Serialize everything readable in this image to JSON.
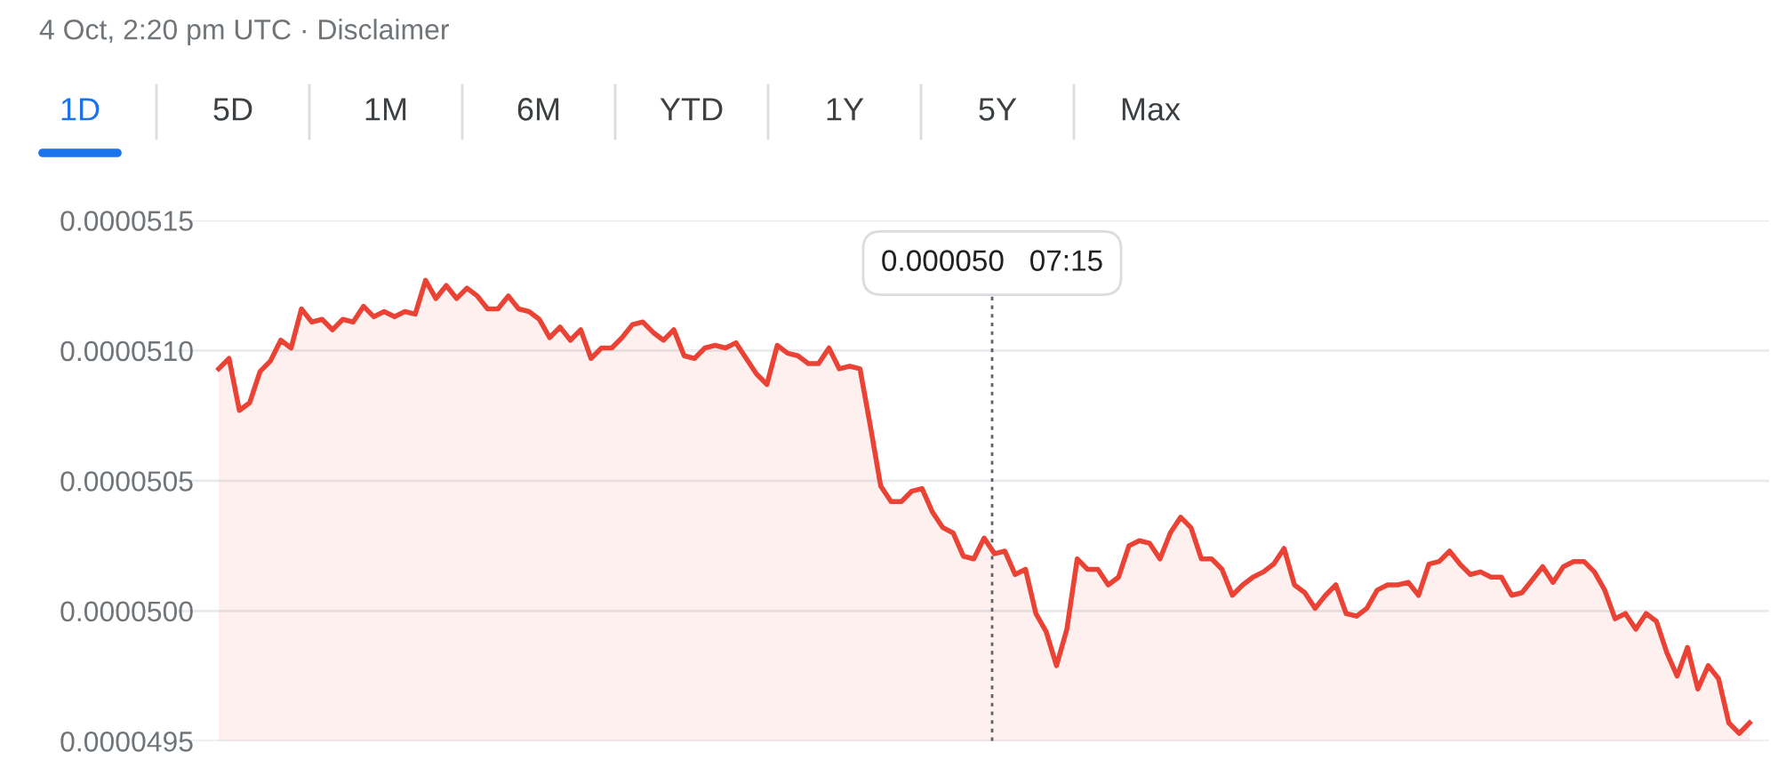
{
  "chart_data": {
    "type": "area",
    "title": "4 Oct, 2:20 pm UTC · Disclaimer",
    "annotations": [
      "1D",
      "5D",
      "1M",
      "6M",
      "YTD",
      "1Y",
      "5Y",
      "Max",
      "0.000050   07:15"
    ],
    "categories": [
      null,
      null,
      null,
      null,
      null,
      null,
      null,
      null,
      null,
      null,
      null,
      null,
      null,
      null,
      null,
      null,
      null,
      null,
      null,
      null,
      null,
      null,
      null,
      null,
      null,
      null,
      null,
      null,
      null,
      null,
      null,
      null,
      null,
      null,
      null,
      null,
      null,
      null,
      null,
      null,
      null,
      null,
      null,
      null,
      null,
      null,
      null,
      null,
      null,
      null,
      null,
      null,
      null,
      null,
      null,
      null,
      null,
      null,
      null,
      null,
      null,
      null,
      null,
      null,
      null,
      null,
      null,
      null,
      null,
      null,
      null,
      null,
      null,
      null,
      null,
      null,
      null,
      null,
      null,
      null,
      null,
      null,
      null,
      null,
      null,
      null,
      null,
      null,
      null,
      null,
      null,
      null,
      null,
      null,
      null,
      null,
      null,
      null,
      null,
      null,
      null,
      null,
      null,
      null,
      null,
      null,
      null,
      null,
      null,
      null,
      null,
      null,
      null,
      null,
      null,
      null,
      null,
      null,
      null,
      null,
      null,
      null,
      null,
      null,
      null,
      null,
      null,
      null,
      null,
      null,
      null,
      null,
      null,
      null,
      null,
      null,
      null,
      null,
      null,
      null,
      null,
      null,
      null,
      null,
      null,
      null,
      null,
      null,
      null
    ],
    "series": [
      {
        "color": "#ea4335",
        "values": [
          5.093e-05,
          5.097e-05,
          5.077e-05,
          5.08e-05,
          5.092e-05,
          5.096e-05,
          5.104e-05,
          5.101e-05,
          5.116e-05,
          5.111e-05,
          5.112e-05,
          5.108e-05,
          5.112e-05,
          5.111e-05,
          5.117e-05,
          5.113e-05,
          5.115e-05,
          5.113e-05,
          5.115e-05,
          5.114e-05,
          5.127e-05,
          5.12e-05,
          5.125e-05,
          5.12e-05,
          5.124e-05,
          5.121e-05,
          5.116e-05,
          5.116e-05,
          5.121e-05,
          5.116e-05,
          5.115e-05,
          5.112e-05,
          5.105e-05,
          5.109e-05,
          5.104e-05,
          5.108e-05,
          5.097e-05,
          5.101e-05,
          5.101e-05,
          5.105e-05,
          5.11e-05,
          5.111e-05,
          5.107e-05,
          5.104e-05,
          5.108e-05,
          5.098e-05,
          5.097e-05,
          5.101e-05,
          5.102e-05,
          5.101e-05,
          5.103e-05,
          5.097e-05,
          5.091e-05,
          5.087e-05,
          5.102e-05,
          5.099e-05,
          5.098e-05,
          5.095e-05,
          5.095e-05,
          5.101e-05,
          5.093e-05,
          5.094e-05,
          5.093e-05,
          5.071e-05,
          5.048e-05,
          5.042e-05,
          5.042e-05,
          5.046e-05,
          5.047e-05,
          5.038e-05,
          5.032e-05,
          5.03e-05,
          5.021e-05,
          5.02e-05,
          5.028e-05,
          5.022e-05,
          5.023e-05,
          5.014e-05,
          5.016e-05,
          4.999e-05,
          4.992e-05,
          4.979e-05,
          4.993e-05,
          5.02e-05,
          5.016e-05,
          5.016e-05,
          5.01e-05,
          5.013e-05,
          5.025e-05,
          5.027e-05,
          5.026e-05,
          5.02e-05,
          5.03e-05,
          5.036e-05,
          5.032e-05,
          5.02e-05,
          5.02e-05,
          5.016e-05,
          5.006e-05,
          5.01e-05,
          5.013e-05,
          5.015e-05,
          5.018e-05,
          5.024e-05,
          5.01e-05,
          5.007e-05,
          5.001e-05,
          5.006e-05,
          5.01e-05,
          4.999e-05,
          4.998e-05,
          5.001e-05,
          5.008e-05,
          5.01e-05,
          5.01e-05,
          5.011e-05,
          5.006e-05,
          5.018e-05,
          5.019e-05,
          5.023e-05,
          5.018e-05,
          5.014e-05,
          5.015e-05,
          5.013e-05,
          5.013e-05,
          5.006e-05,
          5.007e-05,
          5.012e-05,
          5.017e-05,
          5.011e-05,
          5.017e-05,
          5.019e-05,
          5.019e-05,
          5.015e-05,
          5.008e-05,
          4.997e-05,
          4.999e-05,
          4.993e-05,
          4.999e-05,
          4.996e-05,
          4.984e-05,
          4.975e-05,
          4.986e-05,
          4.97e-05,
          4.979e-05,
          4.974e-05,
          4.957e-05,
          4.953e-05,
          4.957e-05
        ]
      }
    ],
    "ylim": [
      4.95e-05,
      5.15e-05
    ],
    "yticks": [
      {
        "value": 5.15e-05,
        "label": "0.0000515"
      },
      {
        "value": 5.1e-05,
        "label": "0.0000510"
      },
      {
        "value": 5.05e-05,
        "label": "0.0000505"
      },
      {
        "value": 5e-05,
        "label": "0.0000500"
      },
      {
        "value": 4.95e-05,
        "label": "0.0000495"
      }
    ],
    "grid": "y",
    "tick_labels": "y"
  }
}
